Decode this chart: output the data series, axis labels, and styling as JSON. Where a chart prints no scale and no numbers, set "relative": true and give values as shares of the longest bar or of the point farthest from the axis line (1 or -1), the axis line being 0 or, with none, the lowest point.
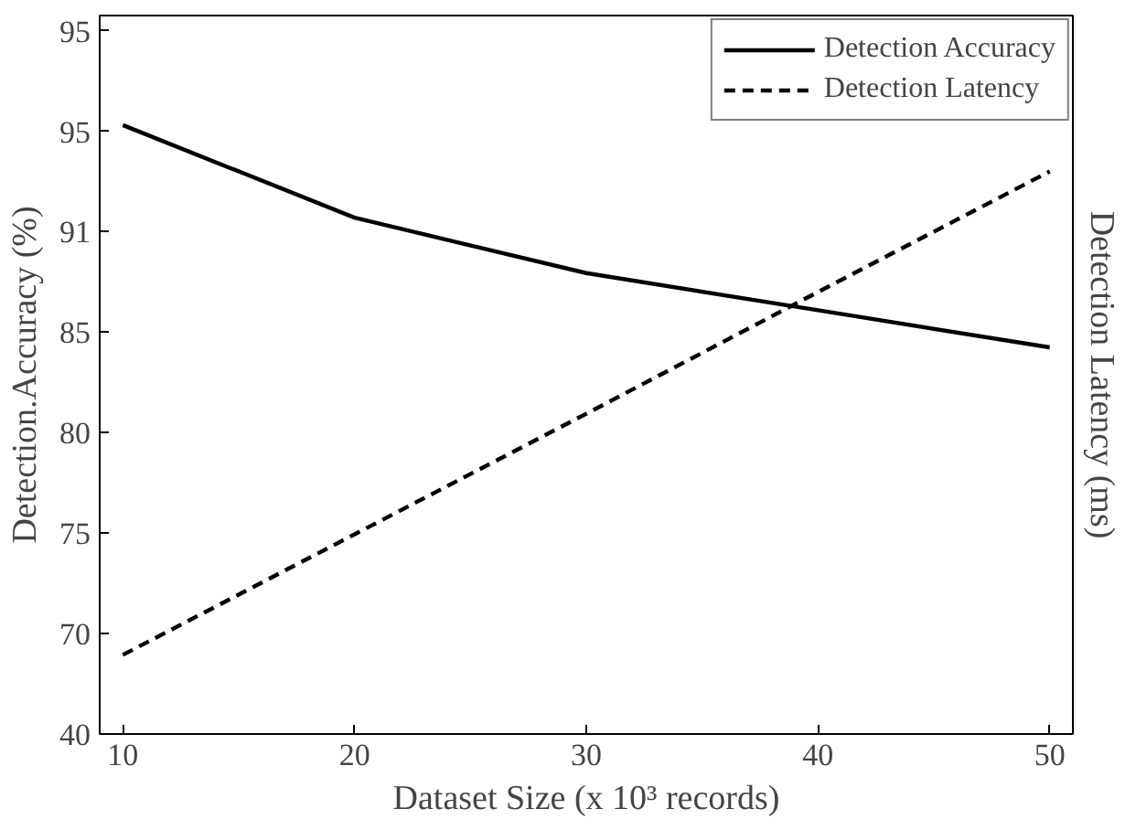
{
  "chart_data": {
    "type": "line",
    "relative": true,
    "xlabel": "Dataset Size (x 10³ records)",
    "ylabel": "Detection.Accuracy (%)",
    "y2label": "Detection Latency (ms)",
    "x": [
      10,
      20,
      30,
      40,
      50
    ],
    "series": [
      {
        "name": "Detection Accuracy",
        "color": "#000000",
        "values": [
          1,
          0.848,
          0.757,
          0.696,
          0.635
        ],
        "line_style": "solid"
      },
      {
        "name": "Detection Latency",
        "color": "#000000",
        "values": [
          0.13,
          0.328,
          0.526,
          0.726,
          0.924
        ],
        "line_style": "dashed"
      }
    ],
    "xlim": [
      9,
      51
    ],
    "xticks": [
      10,
      20,
      30,
      40,
      50
    ],
    "annotations": [
      "40",
      "70",
      "75",
      "80",
      "85",
      "91",
      "95",
      "95"
    ],
    "legend": "top right",
    "grid": false
  }
}
